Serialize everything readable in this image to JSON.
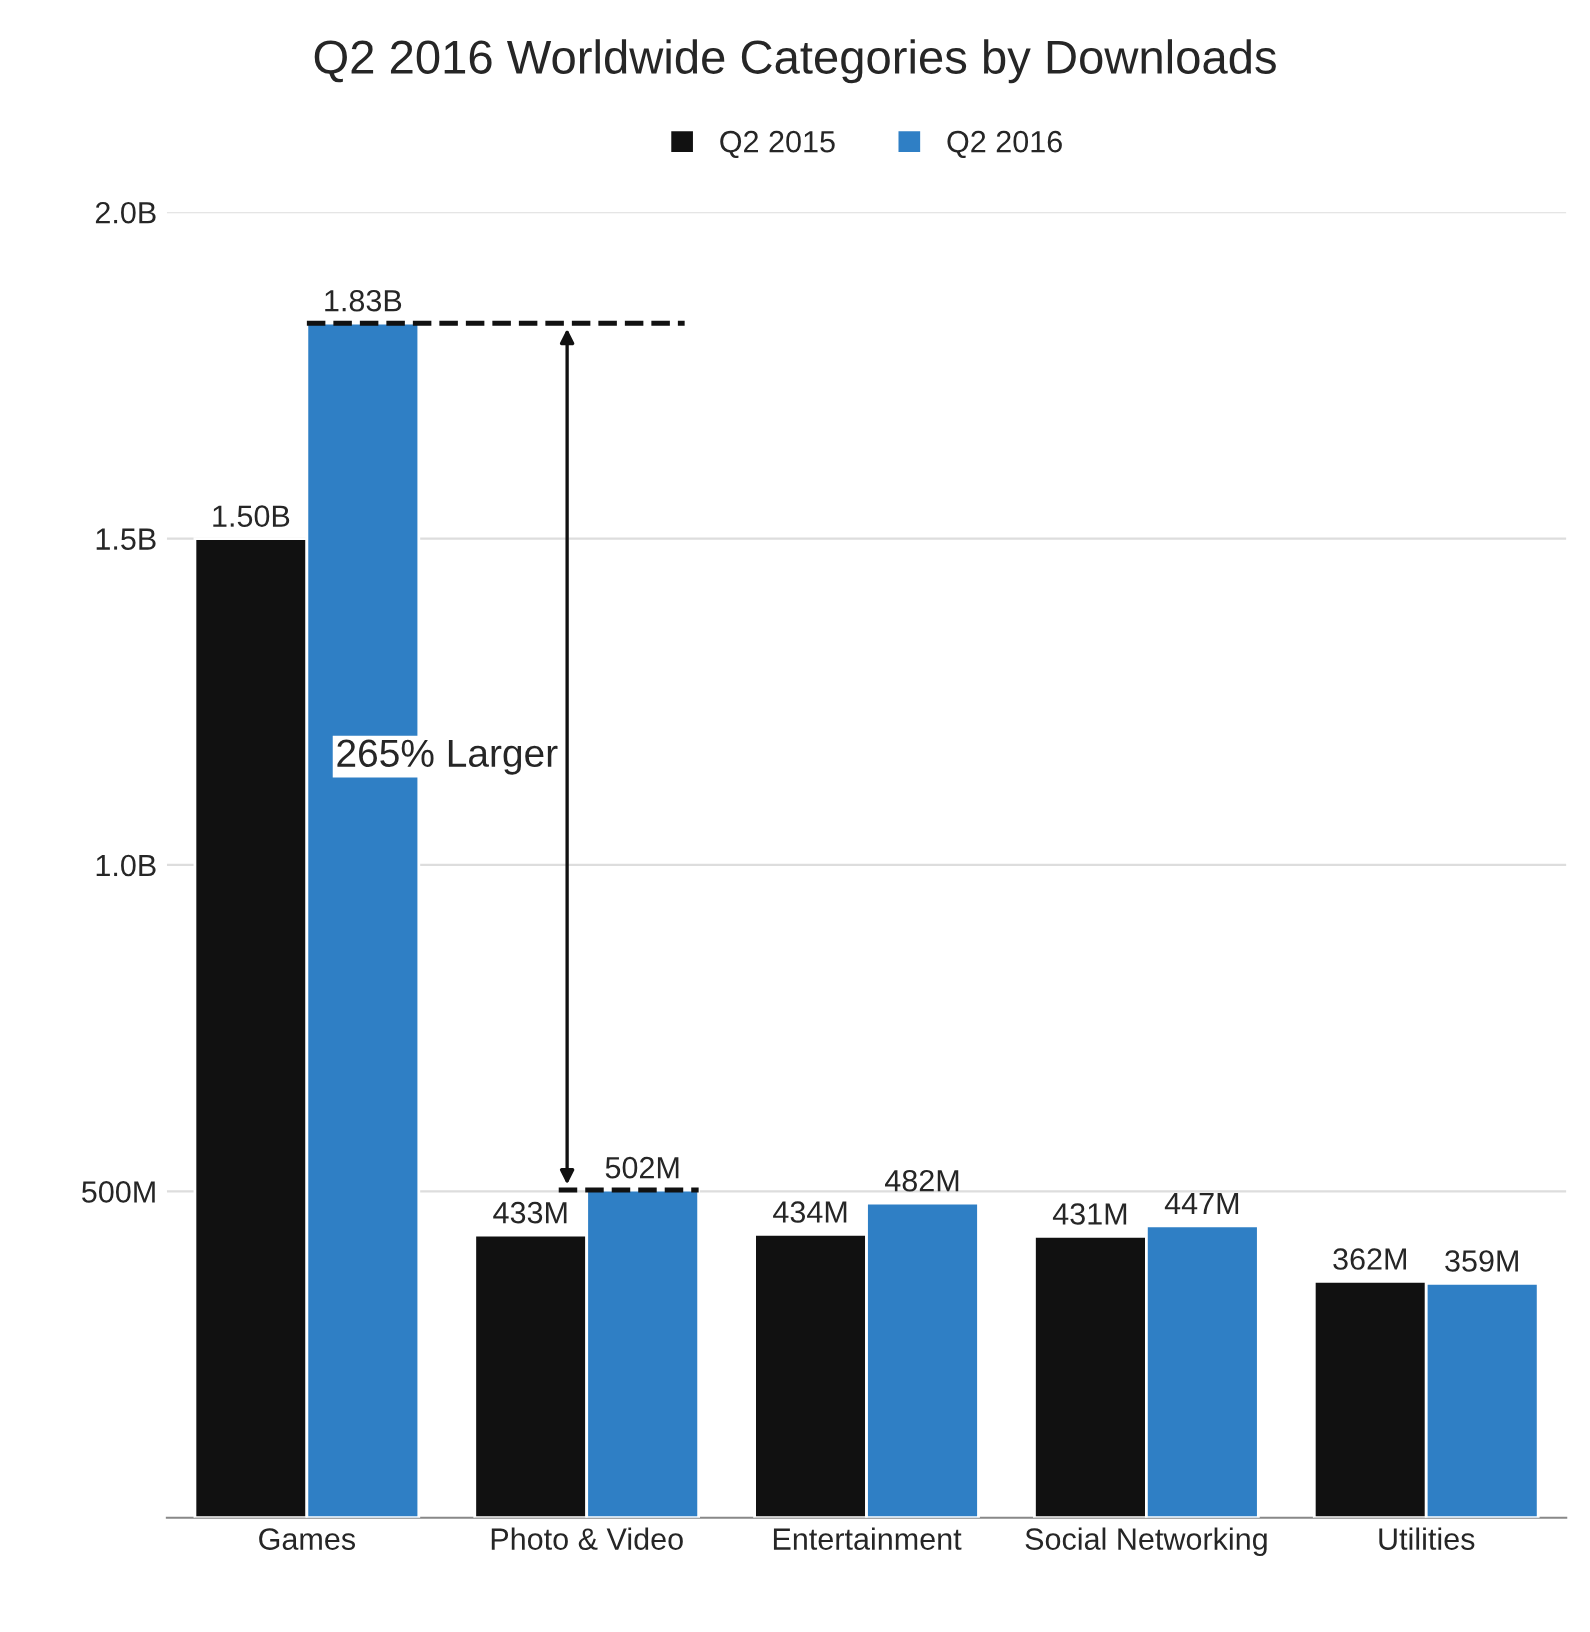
{
  "chart_data": {
    "type": "bar",
    "title": "Q2 2016 Worldwide Categories by Downloads",
    "categories": [
      "Games",
      "Photo & Video",
      "Entertainment",
      "Social Networking",
      "Utilities"
    ],
    "series": [
      {
        "name": "Q2 2015",
        "color": "#111111",
        "values": [
          1500000000,
          433000000,
          434000000,
          431000000,
          362000000
        ],
        "value_labels": [
          "1.50B",
          "433M",
          "434M",
          "431M",
          "362M"
        ]
      },
      {
        "name": "Q2 2016",
        "color": "#2f7fc5",
        "values": [
          1830000000,
          502000000,
          482000000,
          447000000,
          359000000
        ],
        "value_labels": [
          "1.83B",
          "502M",
          "482M",
          "447M",
          "359M"
        ]
      }
    ],
    "ylim": [
      0,
      2000000000
    ],
    "yticks": [
      {
        "value": 500000000,
        "label": "500M"
      },
      {
        "value": 1000000000,
        "label": "1.0B"
      },
      {
        "value": 1500000000,
        "label": "1.5B"
      },
      {
        "value": 2000000000,
        "label": "2.0B"
      }
    ],
    "grid": "y",
    "legend": "top",
    "ref_lines": [
      {
        "axis": "y",
        "value": 1830000000,
        "line_style": "dashed",
        "color": "#111111"
      },
      {
        "axis": "y",
        "value": 502000000,
        "line_style": "dashed",
        "color": "#111111"
      }
    ],
    "annotations": [
      "265% Larger"
    ]
  }
}
